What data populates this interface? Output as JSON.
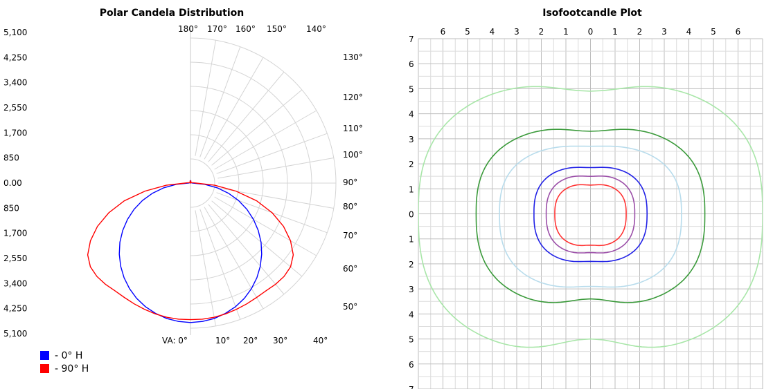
{
  "chart_data": [
    {
      "type": "polar",
      "title": "Polar Candela Distribution",
      "radial_tick_labels": [
        "5,100",
        "4,250",
        "3,400",
        "2,550",
        "1,700",
        "850",
        "0.00",
        "850",
        "1,700",
        "2,550",
        "3,400",
        "4,250",
        "5,100"
      ],
      "rlim": [
        0,
        5100
      ],
      "ring_step": 850,
      "top_angle_labels": [
        "180°",
        "170°",
        "160°",
        "150°",
        "140°"
      ],
      "top_angle_values": [
        180,
        170,
        160,
        150,
        140
      ],
      "right_angle_labels": [
        "130°",
        "120°",
        "110°",
        "100°",
        "90°",
        "80°",
        "70°",
        "60°",
        "50°"
      ],
      "right_angle_values": [
        130,
        120,
        110,
        100,
        90,
        80,
        70,
        60,
        50
      ],
      "bottom_angle_labels": [
        "VA: 0°",
        "10°",
        "20°",
        "30°",
        "40°"
      ],
      "bottom_angle_values": [
        0,
        10,
        20,
        30,
        40
      ],
      "grid": true,
      "legend": "bottom-left",
      "series": [
        {
          "name": "- 0° H",
          "color": "#0000ff",
          "angles": [
            0,
            5,
            10,
            15,
            20,
            25,
            30,
            35,
            40,
            45,
            50,
            55,
            60,
            65,
            70,
            75,
            80,
            85,
            90,
            95,
            100,
            105,
            110,
            120,
            130,
            140,
            150,
            160,
            170,
            180
          ],
          "values": [
            4900,
            4880,
            4830,
            4740,
            4620,
            4470,
            4280,
            4060,
            3810,
            3530,
            3230,
            2900,
            2550,
            2180,
            1790,
            1380,
            950,
            500,
            60,
            50,
            50,
            40,
            30,
            20,
            10,
            10,
            20,
            40,
            60,
            80
          ]
        },
        {
          "name": "- 90° H",
          "color": "#ff0000",
          "angles": [
            0,
            5,
            10,
            15,
            20,
            25,
            30,
            35,
            40,
            45,
            50,
            55,
            60,
            65,
            70,
            75,
            80,
            85,
            90,
            95,
            100,
            105,
            110,
            120,
            130,
            140,
            150,
            160,
            170,
            180
          ],
          "values": [
            4800,
            4800,
            4790,
            4760,
            4720,
            4680,
            4640,
            4620,
            4640,
            4640,
            4580,
            4400,
            4050,
            3600,
            3050,
            2400,
            1620,
            850,
            200,
            120,
            80,
            60,
            40,
            20,
            10,
            10,
            20,
            40,
            70,
            60
          ]
        }
      ]
    },
    {
      "type": "contour",
      "title": "Isofootcandle Plot",
      "x_tick_labels": [
        "6",
        "5",
        "4",
        "3",
        "2",
        "1",
        "0",
        "1",
        "2",
        "3",
        "4",
        "5",
        "6"
      ],
      "x_tick_values": [
        -6,
        -5,
        -4,
        -3,
        -2,
        -1,
        0,
        1,
        2,
        3,
        4,
        5,
        6
      ],
      "y_tick_labels": [
        "7",
        "6",
        "5",
        "4",
        "3",
        "2",
        "1",
        "0",
        "1",
        "2",
        "3",
        "4",
        "5",
        "6",
        "7"
      ],
      "y_tick_values": [
        7,
        6,
        5,
        4,
        3,
        2,
        1,
        0,
        -1,
        -2,
        -3,
        -4,
        -5,
        -6,
        -7
      ],
      "xlim": [
        -7,
        7
      ],
      "ylim": [
        -7,
        7
      ],
      "grid": true,
      "contours": [
        {
          "color": "#a8e6a8",
          "half_width": 7.0,
          "half_height_top": 5.3,
          "half_height_bottom": 5.6,
          "notch_top": 4.9,
          "notch_bottom": -5.0,
          "open": true
        },
        {
          "color": "#3a9a3a",
          "half_width": 4.65,
          "half_height_top": 3.5,
          "half_height_bottom": 3.7,
          "notch_top": 3.3,
          "notch_bottom": -3.4
        },
        {
          "color": "#b8dcec",
          "half_width": 3.7,
          "half_height_top": 2.75,
          "half_height_bottom": 3.0,
          "notch_top": 2.7,
          "notch_bottom": -2.9
        },
        {
          "color": "#2222e6",
          "half_width": 2.3,
          "half_height_top": 1.9,
          "half_height_bottom": 1.95,
          "notch_top": 1.85,
          "notch_bottom": -1.9
        },
        {
          "color": "#9b4fa8",
          "half_width": 1.8,
          "half_height_top": 1.55,
          "half_height_bottom": 1.6,
          "notch_top": 1.5,
          "notch_bottom": -1.55
        },
        {
          "color": "#ff3333",
          "half_width": 1.45,
          "half_height_top": 1.2,
          "half_height_bottom": 1.3,
          "notch_top": 1.15,
          "notch_bottom": -1.25
        }
      ]
    }
  ]
}
